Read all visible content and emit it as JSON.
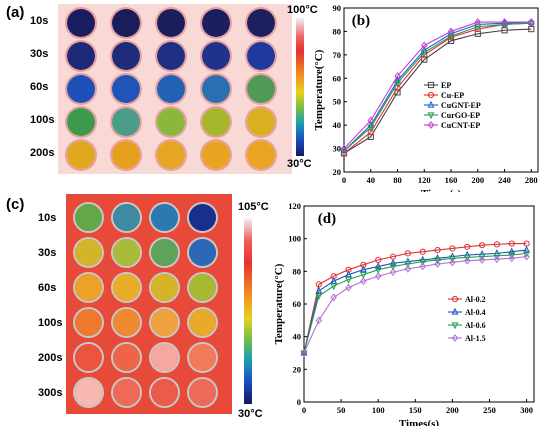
{
  "panel_a": {
    "label": "(a)",
    "rows": [
      "10s",
      "30s",
      "60s",
      "100s",
      "200s"
    ],
    "colorbar_max": "100°C",
    "colorbar_min": "30°C",
    "background": "#f8d9d6",
    "sample_colors": [
      [
        "#1b1e5e",
        "#1a1d5c",
        "#1b1e5c",
        "#1b1f60",
        "#1c205f"
      ],
      [
        "#1e2a78",
        "#1f2c7a",
        "#1f2e80",
        "#21328a",
        "#1f3a9c"
      ],
      [
        "#1f50b8",
        "#2055b8",
        "#2262b5",
        "#2a6fb0",
        "#4f9a55"
      ],
      [
        "#3d9a4d",
        "#4a9d88",
        "#8ab83a",
        "#a6b62a",
        "#d8b020"
      ],
      [
        "#e0a820",
        "#e5a020",
        "#e6a623",
        "#e8a322",
        "#e8a522"
      ]
    ]
  },
  "panel_c": {
    "label": "(c)",
    "rows": [
      "10s",
      "30s",
      "60s",
      "100s",
      "200s",
      "300s"
    ],
    "colorbar_max": "105°C",
    "colorbar_min": "30°C",
    "background": "#e84a3a",
    "sample_colors": [
      [
        "#62a84a",
        "#3f8aa0",
        "#2c79b0",
        "#1a2f8c"
      ],
      [
        "#d4b42a",
        "#a8bc3a",
        "#5ea35a",
        "#2d68b6"
      ],
      [
        "#eba22a",
        "#e8ae28",
        "#d6b428",
        "#a8b832"
      ],
      [
        "#ee7a30",
        "#ef8a32",
        "#f0a240",
        "#e8aa2a"
      ],
      [
        "#ec5440",
        "#ee6446",
        "#f6a8a0",
        "#f07a5a"
      ],
      [
        "#f6b8b0",
        "#ee6a56",
        "#ec5a4a",
        "#ec6a58"
      ]
    ]
  },
  "chart_data": [
    {
      "type": "line",
      "panel": "(b)",
      "xlabel": "Times(s)",
      "ylabel": "Temperature(°C)",
      "xlim": [
        0,
        290
      ],
      "ylim": [
        20,
        90
      ],
      "xticks": [
        0,
        40,
        80,
        120,
        160,
        200,
        240,
        280
      ],
      "yticks": [
        20,
        30,
        40,
        50,
        60,
        70,
        80,
        90
      ],
      "legend_position": "center-right",
      "x": [
        0,
        40,
        80,
        120,
        160,
        200,
        240,
        280
      ],
      "series": [
        {
          "name": "EP",
          "color": "#444444",
          "marker": "square",
          "values": [
            28,
            35,
            54,
            68,
            76,
            79,
            80.5,
            81
          ]
        },
        {
          "name": "Cu-EP",
          "color": "#e03030",
          "marker": "circle",
          "values": [
            28,
            37,
            56,
            70,
            77.5,
            81,
            83,
            83.5
          ]
        },
        {
          "name": "CuGNT-EP",
          "color": "#2060d0",
          "marker": "triangle",
          "values": [
            29,
            40,
            59,
            72,
            79,
            83,
            83.5,
            84
          ]
        },
        {
          "name": "CurGO-EP",
          "color": "#20a050",
          "marker": "down-triangle",
          "values": [
            29,
            39,
            58,
            71,
            78,
            82,
            83,
            83.5
          ]
        },
        {
          "name": "CuCNT-EP",
          "color": "#c040d0",
          "marker": "diamond",
          "values": [
            30,
            42,
            61,
            74,
            80,
            84,
            84,
            84
          ]
        }
      ]
    },
    {
      "type": "line",
      "panel": "(d)",
      "xlabel": "Times(s)",
      "ylabel": "Temperature(°C)",
      "xlim": [
        0,
        310
      ],
      "ylim": [
        0,
        120
      ],
      "xticks": [
        0,
        50,
        100,
        150,
        200,
        250,
        300
      ],
      "yticks": [
        0,
        20,
        40,
        60,
        80,
        100,
        120
      ],
      "legend_position": "center-right",
      "x": [
        0,
        20,
        40,
        60,
        80,
        100,
        120,
        140,
        160,
        180,
        200,
        220,
        240,
        260,
        280,
        300
      ],
      "series": [
        {
          "name": "Al-0.2",
          "color": "#e03030",
          "marker": "circle",
          "values": [
            30,
            72,
            77,
            81,
            84,
            87,
            89,
            91,
            92,
            93,
            94,
            95,
            96,
            96.5,
            97,
            97
          ]
        },
        {
          "name": "Al-0.4",
          "color": "#2050c0",
          "marker": "triangle",
          "values": [
            30,
            68,
            74,
            78,
            81,
            83,
            85,
            86,
            87,
            88,
            89,
            90,
            90.5,
            91,
            92,
            93
          ]
        },
        {
          "name": "Al-0.6",
          "color": "#20a050",
          "marker": "down-triangle",
          "values": [
            30,
            65,
            71,
            75,
            78,
            81,
            83,
            84.5,
            86,
            87,
            88,
            88.5,
            89,
            89.5,
            90,
            91
          ]
        },
        {
          "name": "Al-1.5",
          "color": "#b070d0",
          "marker": "diamond",
          "values": [
            30,
            50,
            64,
            70,
            74,
            77,
            79.5,
            81.5,
            83,
            84.5,
            85.5,
            86.5,
            87,
            87.5,
            88,
            89
          ]
        }
      ]
    }
  ]
}
